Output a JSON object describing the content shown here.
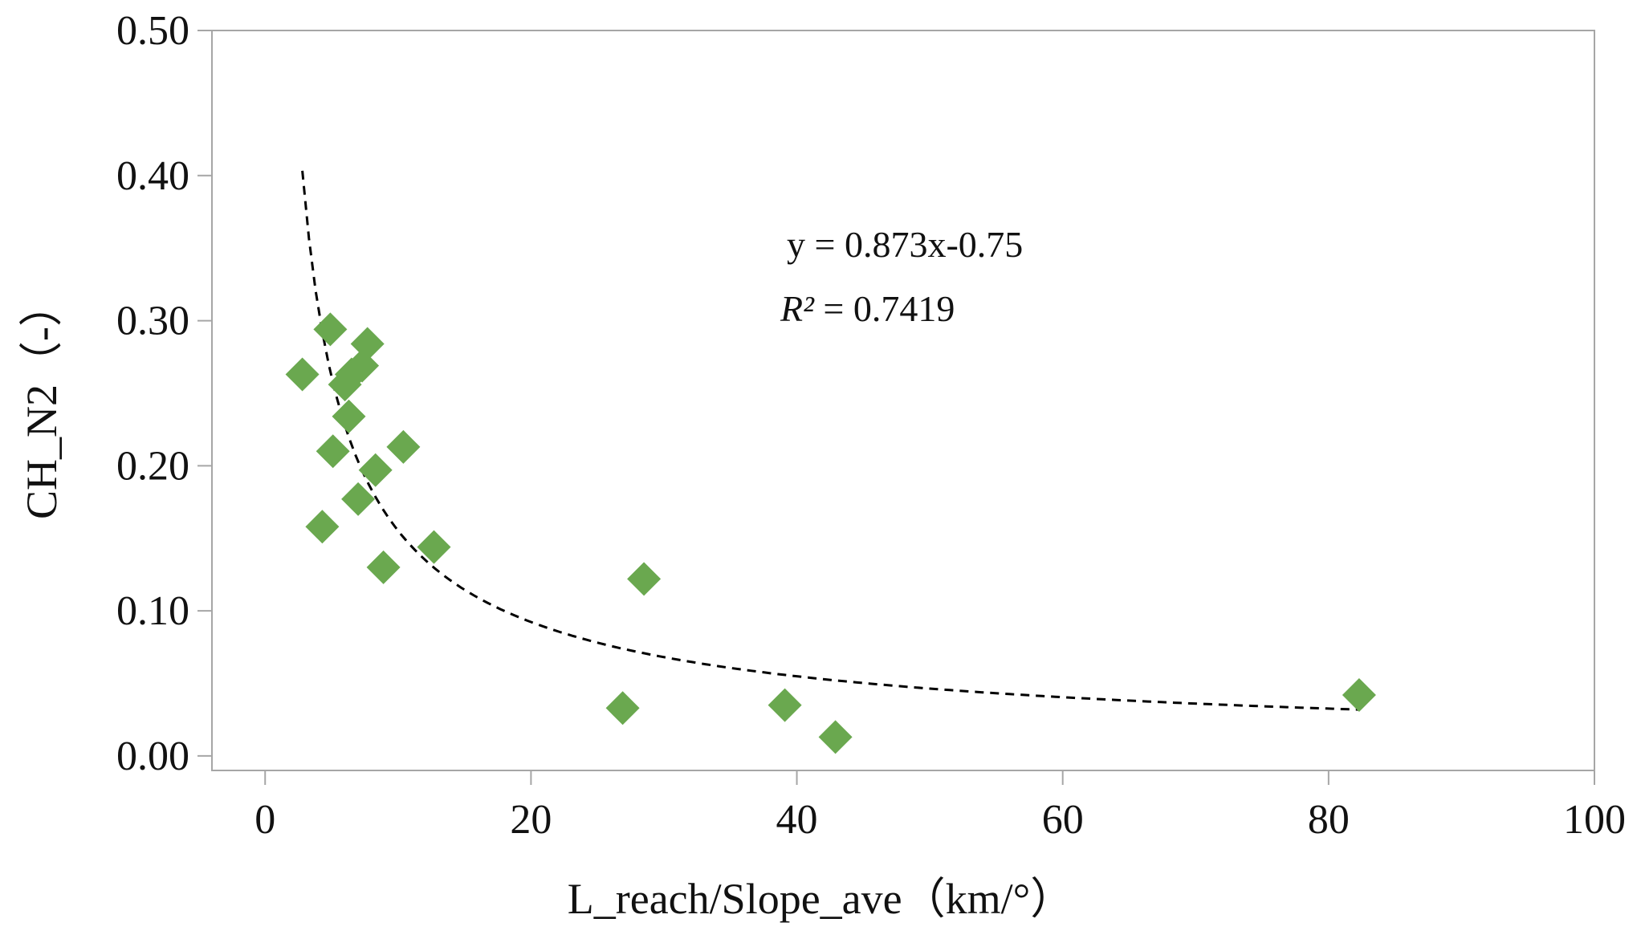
{
  "chart_data": {
    "type": "scatter",
    "title": "",
    "xlabel": "L_reach/Slope_ave（km/°）",
    "ylabel": "CH_N2（-）",
    "xlim": [
      -4,
      100
    ],
    "ylim": [
      -0.01,
      0.5
    ],
    "xticks": [
      0,
      20,
      40,
      60,
      80,
      100
    ],
    "yticks": [
      0.0,
      0.1,
      0.2,
      0.3,
      0.4,
      0.5
    ],
    "xtick_labels": [
      "0",
      "20",
      "40",
      "60",
      "80",
      "100"
    ],
    "ytick_labels": [
      "0.00",
      "0.10",
      "0.20",
      "0.30",
      "0.40",
      "0.50"
    ],
    "grid": false,
    "marker": "diamond",
    "marker_color": "#6aa84f",
    "series": [
      {
        "name": "CH_N2",
        "x": [
          2.8,
          4.9,
          7.7,
          7.3,
          6.5,
          6.0,
          6.3,
          5.1,
          10.4,
          8.3,
          7.0,
          4.3,
          8.9,
          12.7,
          28.5,
          26.9,
          39.1,
          42.9,
          82.3
        ],
        "y": [
          0.263,
          0.294,
          0.284,
          0.269,
          0.263,
          0.256,
          0.234,
          0.21,
          0.213,
          0.197,
          0.177,
          0.158,
          0.13,
          0.144,
          0.122,
          0.033,
          0.035,
          0.013,
          0.042
        ]
      }
    ],
    "trendline": {
      "type": "power",
      "coefficient": 0.873,
      "exponent": -0.75,
      "x_range": [
        2.8,
        82.3
      ],
      "style": "dashed",
      "color": "#000000"
    },
    "annotations": {
      "equation": "y = 0.873x-0.75",
      "r2_symbol": "R²",
      "r2_rest": " = 0.7419"
    }
  }
}
